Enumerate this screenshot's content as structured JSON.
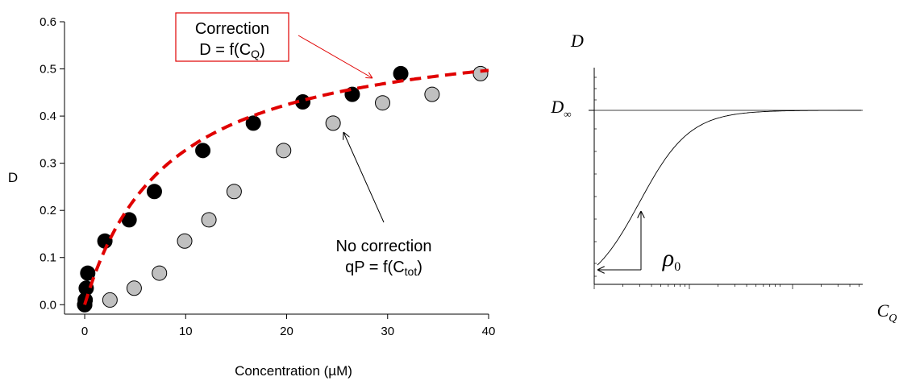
{
  "chart_data": [
    {
      "type": "scatter",
      "xlabel": "Concentration (µM)",
      "ylabel": "D",
      "xlim": [
        -2,
        40
      ],
      "ylim": [
        -0.02,
        0.6
      ],
      "x_ticks": [
        0,
        10,
        20,
        30,
        40
      ],
      "y_ticks": [
        0.0,
        0.1,
        0.2,
        0.3,
        0.4,
        0.5,
        0.6
      ],
      "grid": false,
      "series": [
        {
          "marker": "black-circle",
          "color": "#000000",
          "points": [
            [
              0.0,
              0.0
            ],
            [
              0.05,
              0.01
            ],
            [
              0.15,
              0.035
            ],
            [
              0.3,
              0.067
            ],
            [
              2.0,
              0.135
            ],
            [
              4.4,
              0.18
            ],
            [
              6.9,
              0.24
            ],
            [
              11.7,
              0.327
            ],
            [
              16.7,
              0.385
            ],
            [
              21.6,
              0.43
            ],
            [
              26.5,
              0.446
            ],
            [
              31.3,
              0.49
            ]
          ]
        },
        {
          "marker": "gray-circle",
          "color": "#c0c0c0",
          "points": [
            [
              0.0,
              0.0
            ],
            [
              2.5,
              0.01
            ],
            [
              4.9,
              0.035
            ],
            [
              7.4,
              0.067
            ],
            [
              9.9,
              0.135
            ],
            [
              12.3,
              0.18
            ],
            [
              14.8,
              0.24
            ],
            [
              19.7,
              0.327
            ],
            [
              24.6,
              0.385
            ],
            [
              29.5,
              0.428
            ],
            [
              34.4,
              0.446
            ],
            [
              39.2,
              0.49
            ]
          ]
        }
      ],
      "fit_curve": {
        "style": "dashed",
        "color": "#e00000",
        "d_inf": 0.6,
        "k": 8.3,
        "x_range": [
          0,
          40
        ]
      },
      "annotations": {
        "correction_title": "Correction",
        "correction_eq_prefix": "D = f(C",
        "correction_eq_sub": "Q",
        "correction_eq_suffix": ")",
        "correction_box_color": "#e00000",
        "nocorr_title": "No correction",
        "nocorr_eq_prefix": "qP = f(C",
        "nocorr_eq_sub": "tot",
        "nocorr_eq_suffix": ")"
      }
    },
    {
      "type": "line",
      "xscale": "log",
      "yscale": "log",
      "ylabel": "D",
      "xlabel_main": "C",
      "xlabel_sub": "Q",
      "d_inf_main": "D",
      "d_inf_sub": "∞",
      "rho_main": "ρ",
      "rho_sub": "0"
    }
  ]
}
